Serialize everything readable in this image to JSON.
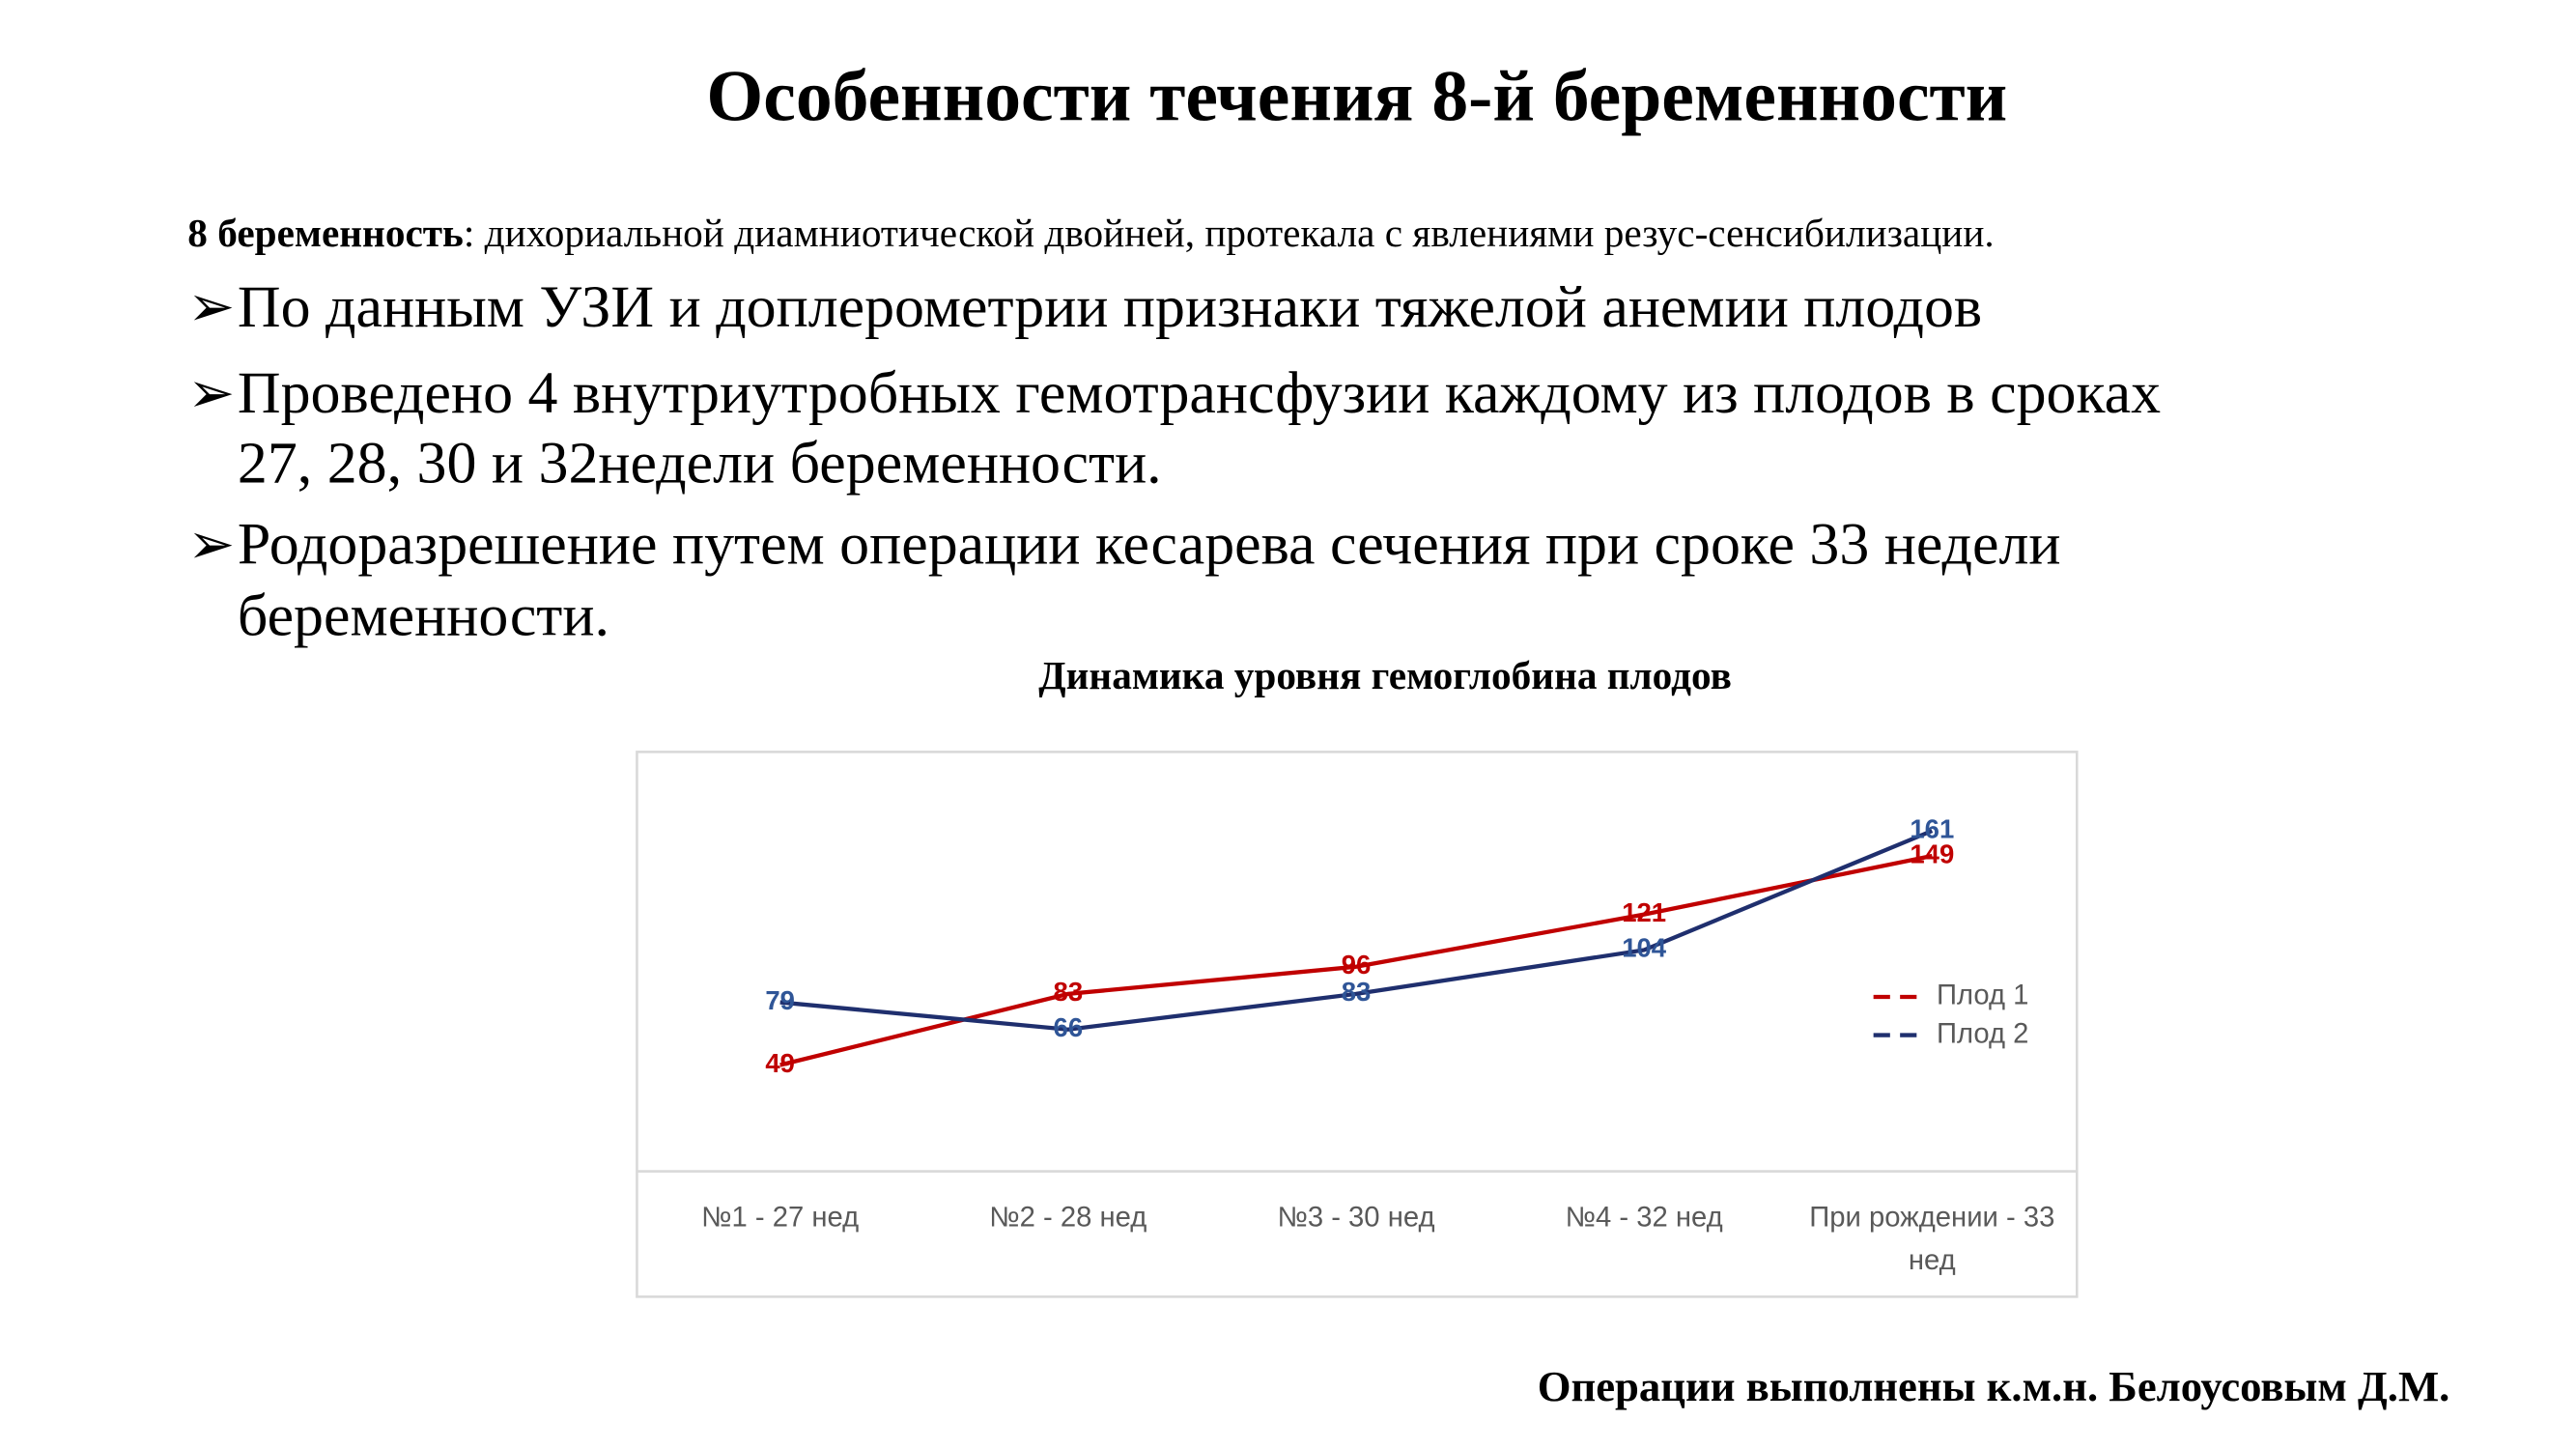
{
  "title": "Особенности течения  8-й беременности",
  "intro": {
    "label": "8 беременность",
    "text": ": дихориальной диамниотической  двойней, протекала с явлениями резус-сенсибилизации."
  },
  "bullets": [
    [
      "По данным УЗИ и доплерометрии признаки тяжелой анемии плодов"
    ],
    [
      "Проведено 4 внутриутробных гемотрансфузии каждому из плодов в сроках",
      "27, 28, 30 и 32недели беременности."
    ],
    [
      "Родоразрешение путем операции кесарева сечения при сроке 33 недели",
      "беременности."
    ]
  ],
  "chart_data": {
    "type": "line",
    "title": "Динамика  уровня гемоглобина плодов",
    "categories": [
      "№1 - 27 нед",
      "№2 - 28 нед",
      "№3 - 30 нед",
      "№4 - 32 нед",
      "При рождении - 33 нед"
    ],
    "series": [
      {
        "name": "Плод 1",
        "color": "#c00000",
        "label_color": "#c00000",
        "values": [
          49,
          83,
          96,
          121,
          149
        ]
      },
      {
        "name": "Плод 2",
        "color": "#1f2f6e",
        "label_color": "#2f5597",
        "values": [
          79,
          66,
          83,
          104,
          161
        ]
      }
    ],
    "legend": "right",
    "grid": false
  },
  "footer": "Операции выполнены к.м.н. Белоусовым Д.М."
}
